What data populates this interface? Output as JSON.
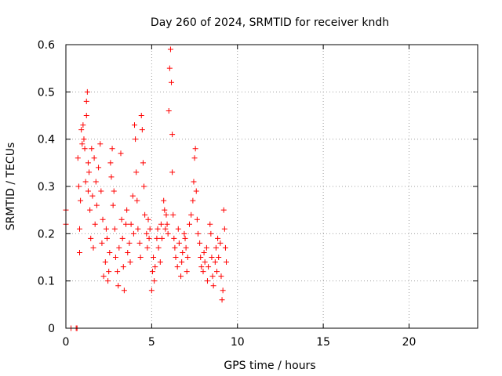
{
  "chart_data": {
    "type": "scatter",
    "title": "Day 260 of 2024, SRMTID for receiver kndh",
    "xlabel": "GPS time / hours",
    "ylabel": "SRMTID / TECUs",
    "xlim": [
      0,
      24
    ],
    "ylim": [
      0,
      0.6
    ],
    "xticks": [
      0,
      5,
      10,
      15,
      20
    ],
    "yticks": [
      0,
      0.1,
      0.2,
      0.3,
      0.4,
      0.5,
      0.6
    ],
    "xtick_labels": [
      "0",
      "5",
      "10",
      "15",
      "20"
    ],
    "ytick_labels": [
      "0",
      "0.1",
      "0.2",
      "0.3",
      "0.4",
      "0.5",
      "0.6"
    ],
    "grid": true,
    "marker": "+",
    "series": [
      {
        "name": "SRMTID",
        "color": "#ff0000",
        "points": [
          [
            0.0,
            0.25
          ],
          [
            0.0,
            0.22
          ],
          [
            0.3,
            0.0
          ],
          [
            0.6,
            0.0
          ],
          [
            0.65,
            0.0
          ],
          [
            0.7,
            0.36
          ],
          [
            0.75,
            0.3
          ],
          [
            0.8,
            0.21
          ],
          [
            0.8,
            0.16
          ],
          [
            0.85,
            0.27
          ],
          [
            0.9,
            0.42
          ],
          [
            0.95,
            0.39
          ],
          [
            1.0,
            0.43
          ],
          [
            1.05,
            0.4
          ],
          [
            1.1,
            0.38
          ],
          [
            1.15,
            0.31
          ],
          [
            1.2,
            0.45
          ],
          [
            1.2,
            0.48
          ],
          [
            1.25,
            0.5
          ],
          [
            1.3,
            0.35
          ],
          [
            1.3,
            0.29
          ],
          [
            1.35,
            0.33
          ],
          [
            1.4,
            0.25
          ],
          [
            1.45,
            0.19
          ],
          [
            1.5,
            0.38
          ],
          [
            1.55,
            0.28
          ],
          [
            1.6,
            0.17
          ],
          [
            1.65,
            0.36
          ],
          [
            1.7,
            0.22
          ],
          [
            1.75,
            0.31
          ],
          [
            1.8,
            0.26
          ],
          [
            1.9,
            0.34
          ],
          [
            2.0,
            0.39
          ],
          [
            2.05,
            0.29
          ],
          [
            2.1,
            0.18
          ],
          [
            2.15,
            0.23
          ],
          [
            2.2,
            0.11
          ],
          [
            2.3,
            0.14
          ],
          [
            2.35,
            0.21
          ],
          [
            2.4,
            0.19
          ],
          [
            2.45,
            0.1
          ],
          [
            2.5,
            0.12
          ],
          [
            2.55,
            0.16
          ],
          [
            2.6,
            0.35
          ],
          [
            2.65,
            0.32
          ],
          [
            2.7,
            0.38
          ],
          [
            2.75,
            0.26
          ],
          [
            2.8,
            0.29
          ],
          [
            2.85,
            0.21
          ],
          [
            2.9,
            0.15
          ],
          [
            3.0,
            0.12
          ],
          [
            3.05,
            0.09
          ],
          [
            3.1,
            0.17
          ],
          [
            3.2,
            0.37
          ],
          [
            3.25,
            0.23
          ],
          [
            3.3,
            0.19
          ],
          [
            3.35,
            0.13
          ],
          [
            3.4,
            0.08
          ],
          [
            3.5,
            0.22
          ],
          [
            3.55,
            0.25
          ],
          [
            3.6,
            0.16
          ],
          [
            3.7,
            0.18
          ],
          [
            3.75,
            0.14
          ],
          [
            3.8,
            0.22
          ],
          [
            3.9,
            0.28
          ],
          [
            3.95,
            0.2
          ],
          [
            4.0,
            0.43
          ],
          [
            4.05,
            0.4
          ],
          [
            4.1,
            0.33
          ],
          [
            4.15,
            0.27
          ],
          [
            4.2,
            0.21
          ],
          [
            4.3,
            0.18
          ],
          [
            4.35,
            0.15
          ],
          [
            4.4,
            0.45
          ],
          [
            4.45,
            0.42
          ],
          [
            4.5,
            0.35
          ],
          [
            4.55,
            0.3
          ],
          [
            4.6,
            0.24
          ],
          [
            4.7,
            0.2
          ],
          [
            4.75,
            0.17
          ],
          [
            4.8,
            0.23
          ],
          [
            4.85,
            0.19
          ],
          [
            4.9,
            0.21
          ],
          [
            5.0,
            0.08
          ],
          [
            5.05,
            0.12
          ],
          [
            5.1,
            0.15
          ],
          [
            5.15,
            0.1
          ],
          [
            5.2,
            0.13
          ],
          [
            5.3,
            0.19
          ],
          [
            5.35,
            0.21
          ],
          [
            5.4,
            0.17
          ],
          [
            5.5,
            0.14
          ],
          [
            5.55,
            0.22
          ],
          [
            5.6,
            0.19
          ],
          [
            5.7,
            0.27
          ],
          [
            5.75,
            0.25
          ],
          [
            5.8,
            0.21
          ],
          [
            5.85,
            0.24
          ],
          [
            5.9,
            0.22
          ],
          [
            5.95,
            0.2
          ],
          [
            6.0,
            0.46
          ],
          [
            6.05,
            0.55
          ],
          [
            6.1,
            0.59
          ],
          [
            6.15,
            0.52
          ],
          [
            6.2,
            0.41
          ],
          [
            6.2,
            0.33
          ],
          [
            6.25,
            0.24
          ],
          [
            6.3,
            0.19
          ],
          [
            6.35,
            0.17
          ],
          [
            6.4,
            0.15
          ],
          [
            6.5,
            0.13
          ],
          [
            6.55,
            0.21
          ],
          [
            6.6,
            0.18
          ],
          [
            6.7,
            0.11
          ],
          [
            6.75,
            0.14
          ],
          [
            6.8,
            0.16
          ],
          [
            6.9,
            0.2
          ],
          [
            6.95,
            0.19
          ],
          [
            7.0,
            0.17
          ],
          [
            7.05,
            0.12
          ],
          [
            7.1,
            0.15
          ],
          [
            7.2,
            0.22
          ],
          [
            7.3,
            0.24
          ],
          [
            7.4,
            0.27
          ],
          [
            7.45,
            0.31
          ],
          [
            7.5,
            0.36
          ],
          [
            7.55,
            0.38
          ],
          [
            7.6,
            0.29
          ],
          [
            7.65,
            0.23
          ],
          [
            7.7,
            0.2
          ],
          [
            7.8,
            0.18
          ],
          [
            7.85,
            0.15
          ],
          [
            7.9,
            0.13
          ],
          [
            8.0,
            0.12
          ],
          [
            8.05,
            0.16
          ],
          [
            8.1,
            0.14
          ],
          [
            8.2,
            0.17
          ],
          [
            8.25,
            0.1
          ],
          [
            8.3,
            0.13
          ],
          [
            8.4,
            0.22
          ],
          [
            8.45,
            0.2
          ],
          [
            8.5,
            0.15
          ],
          [
            8.55,
            0.11
          ],
          [
            8.6,
            0.09
          ],
          [
            8.7,
            0.14
          ],
          [
            8.75,
            0.17
          ],
          [
            8.8,
            0.12
          ],
          [
            8.85,
            0.19
          ],
          [
            8.9,
            0.15
          ],
          [
            9.0,
            0.18
          ],
          [
            9.05,
            0.11
          ],
          [
            9.1,
            0.06
          ],
          [
            9.15,
            0.08
          ],
          [
            9.2,
            0.25
          ],
          [
            9.25,
            0.21
          ],
          [
            9.3,
            0.17
          ],
          [
            9.35,
            0.14
          ]
        ]
      }
    ]
  }
}
